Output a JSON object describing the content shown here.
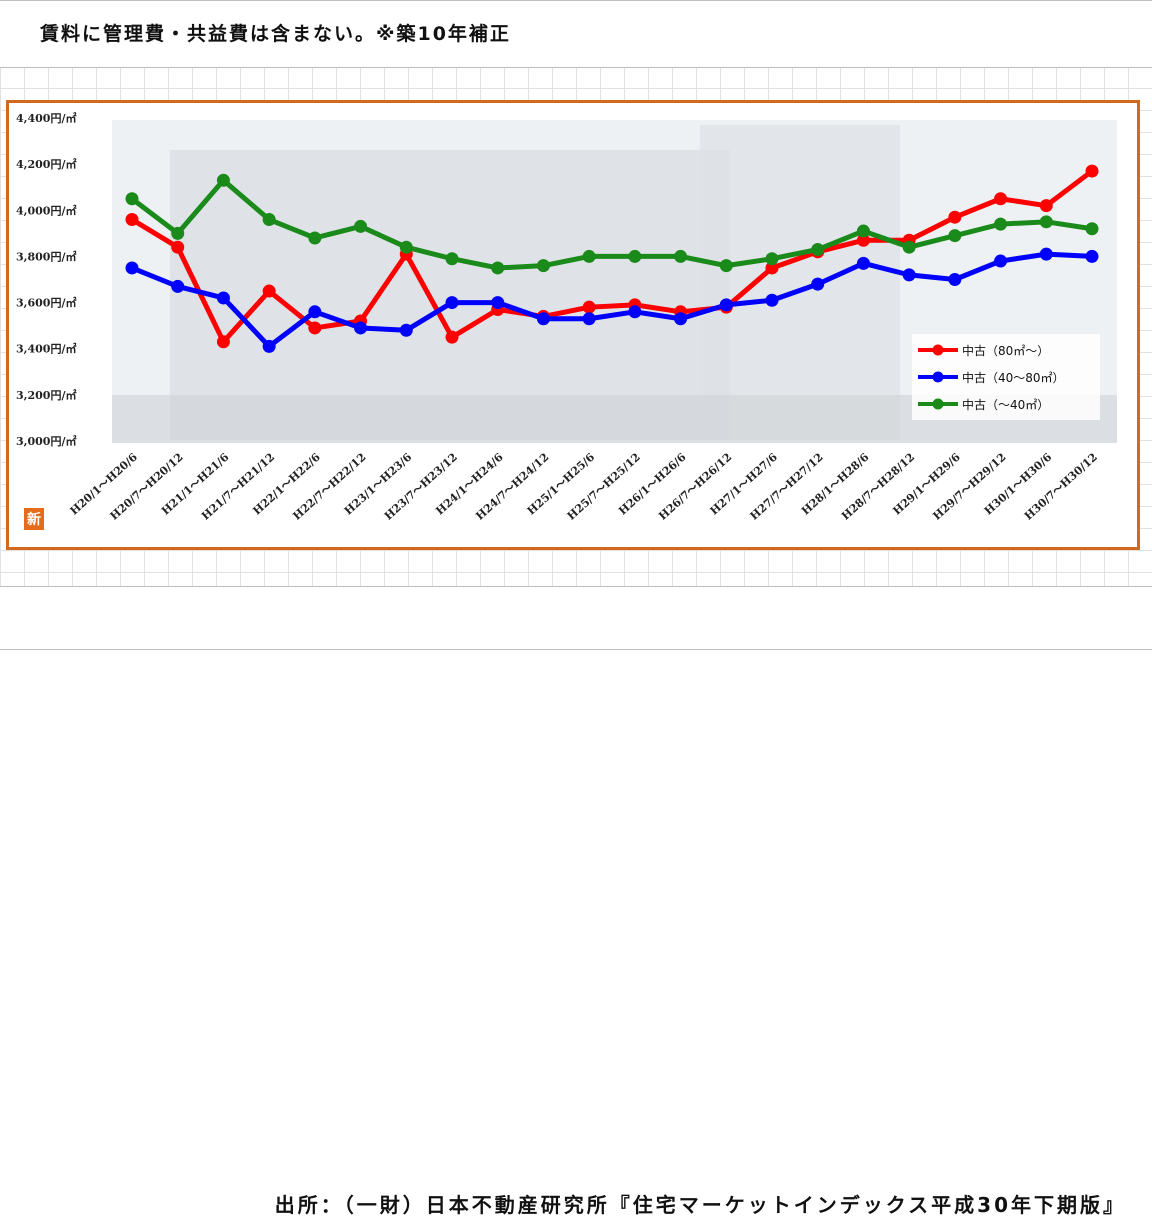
{
  "header": {
    "note": "賃料に管理費・共益費は含まない。※築10年補正"
  },
  "footer": {
    "source": "出所：（一財）日本不動産研究所『住宅マーケットインデックス平成30年下期版』"
  },
  "logo": {
    "char": "新"
  },
  "colors": {
    "frame": "#d2691e",
    "red": "#ff0000",
    "blue": "#0000ff",
    "green": "#1a8a1a"
  },
  "chart_data": {
    "type": "line",
    "title": "",
    "xlabel": "",
    "ylabel": "",
    "ylim": [
      3000,
      4400
    ],
    "yticks": [
      "3,000円/㎡",
      "3,200円/㎡",
      "3,400円/㎡",
      "3,600円/㎡",
      "3,800円/㎡",
      "4,000円/㎡",
      "4,200円/㎡",
      "4,400円/㎡"
    ],
    "ytick_values": [
      3000,
      3200,
      3400,
      3600,
      3800,
      4000,
      4200,
      4400
    ],
    "categories": [
      "H20/1～H20/6",
      "H20/7～H20/12",
      "H21/1～H21/6",
      "H21/7～H21/12",
      "H22/1～H22/6",
      "H22/7～H22/12",
      "H23/1～H23/6",
      "H23/7～H23/12",
      "H24/1～H24/6",
      "H24/7～H24/12",
      "H25/1～H25/6",
      "H25/7～H25/12",
      "H26/1～H26/6",
      "H26/7～H26/12",
      "H27/1～H27/6",
      "H27/7～H27/12",
      "H28/1～H28/6",
      "H28/7～H28/12",
      "H29/1～H29/6",
      "H29/7～H29/12",
      "H30/1～H30/6",
      "H30/7～H30/12"
    ],
    "series": [
      {
        "name": "中古（80㎡～）",
        "color": "#ff0000",
        "values": [
          3960,
          3840,
          3430,
          3650,
          3490,
          3520,
          3810,
          3450,
          3570,
          3540,
          3580,
          3590,
          3560,
          3580,
          3750,
          3820,
          3870,
          3870,
          3970,
          4050,
          4020,
          4170
        ]
      },
      {
        "name": "中古（40～80㎡）",
        "color": "#0000ff",
        "values": [
          3750,
          3670,
          3620,
          3410,
          3560,
          3490,
          3480,
          3600,
          3600,
          3530,
          3530,
          3560,
          3530,
          3590,
          3610,
          3680,
          3770,
          3720,
          3700,
          3780,
          3810,
          3800
        ]
      },
      {
        "name": "中古（～40㎡）",
        "color": "#1a8a1a",
        "values": [
          4050,
          3900,
          4130,
          3960,
          3880,
          3930,
          3840,
          3790,
          3750,
          3760,
          3800,
          3800,
          3800,
          3760,
          3790,
          3830,
          3910,
          3840,
          3890,
          3940,
          3950,
          3920
        ]
      }
    ],
    "legend_position": "right"
  }
}
